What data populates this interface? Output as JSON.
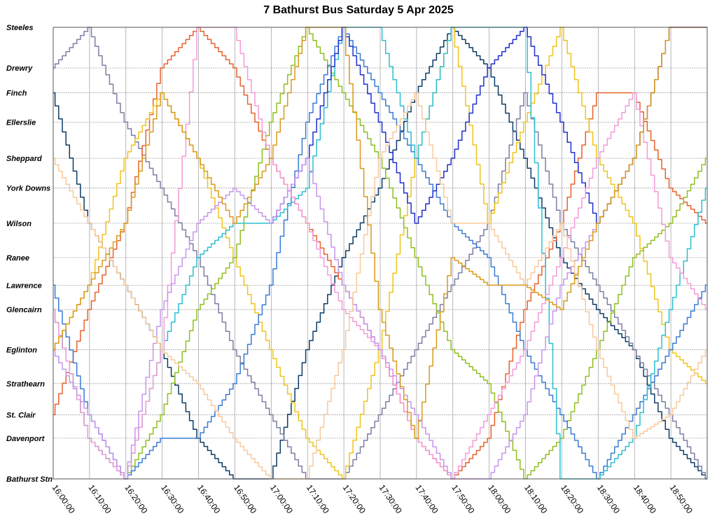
{
  "title": "7 Bathurst Bus Saturday 5 Apr 2025",
  "chart_data": {
    "type": "line",
    "title": "7 Bathurst Bus Saturday 5 Apr 2025",
    "xlabel": "",
    "ylabel": "",
    "x_ticks": [
      "16:00:00",
      "16:10:00",
      "16:20:00",
      "16:30:00",
      "16:40:00",
      "16:50:00",
      "17:00:00",
      "17:10:00",
      "17:20:00",
      "17:30:00",
      "17:40:00",
      "17:50:00",
      "18:00:00",
      "18:10:00",
      "18:20:00",
      "18:30:00",
      "18:40:00",
      "18:50:00"
    ],
    "xlim": [
      "16:00:00",
      "19:00:00"
    ],
    "y_stops": [
      "Steeles",
      "Drewry",
      "Finch",
      "Ellerslie",
      "Sheppard",
      "York Downs",
      "Wilson",
      "Ranee",
      "Lawrence",
      "Glencairn",
      "Eglinton",
      "Strathearn",
      "St. Clair",
      "Davenport",
      "Bathurst Stn"
    ],
    "grid": true,
    "series": [
      {
        "color": "#0d3b66",
        "values": [
          [
            "16:00:00",
            "Finch"
          ],
          [
            "16:10:00",
            "Wilson"
          ],
          [
            "16:20:00",
            "Lawrence"
          ],
          [
            "16:30:00",
            "Eglinton"
          ],
          [
            "16:40:00",
            "Davenport"
          ],
          [
            "16:50:00",
            "Bathurst Stn"
          ],
          [
            "17:00:00",
            "Bathurst Stn"
          ],
          [
            "17:10:00",
            "Eglinton"
          ],
          [
            "17:20:00",
            "Ranee"
          ],
          [
            "17:30:00",
            "York Downs"
          ],
          [
            "17:40:00",
            "Finch"
          ],
          [
            "17:50:00",
            "Steeles"
          ],
          [
            "18:00:00",
            "Drewry"
          ],
          [
            "18:10:00",
            "Sheppard"
          ],
          [
            "18:20:00",
            "Ranee"
          ],
          [
            "18:30:00",
            "Glencairn"
          ],
          [
            "18:40:00",
            "Eglinton"
          ],
          [
            "18:50:00",
            "Davenport"
          ],
          [
            "19:00:00",
            "Bathurst Stn"
          ]
        ]
      },
      {
        "color": "#7b7fa3",
        "values": [
          [
            "16:00:00",
            "Drewry"
          ],
          [
            "16:10:00",
            "Steeles"
          ],
          [
            "16:20:00",
            "Ellerslie"
          ],
          [
            "16:30:00",
            "York Downs"
          ],
          [
            "16:40:00",
            "Ranee"
          ],
          [
            "16:50:00",
            "Eglinton"
          ],
          [
            "17:00:00",
            "St. Clair"
          ],
          [
            "17:10:00",
            "Bathurst Stn"
          ],
          [
            "17:20:00",
            "Bathurst Stn"
          ],
          [
            "17:30:00",
            "St. Clair"
          ],
          [
            "17:40:00",
            "Eglinton"
          ],
          [
            "17:50:00",
            "Lawrence"
          ],
          [
            "18:00:00",
            "Wilson"
          ],
          [
            "18:10:00",
            "Finch"
          ],
          [
            "18:20:00",
            "Wilson"
          ],
          [
            "18:30:00",
            "Lawrence"
          ],
          [
            "18:40:00",
            "Eglinton"
          ],
          [
            "18:50:00",
            "St. Clair"
          ],
          [
            "19:00:00",
            "Bathurst Stn"
          ]
        ]
      },
      {
        "color": "#e8612c",
        "values": [
          [
            "16:00:00",
            "St. Clair"
          ],
          [
            "16:10:00",
            "Glencairn"
          ],
          [
            "16:20:00",
            "Wilson"
          ],
          [
            "16:30:00",
            "Drewry"
          ],
          [
            "16:40:00",
            "Steeles"
          ],
          [
            "16:50:00",
            "Drewry"
          ],
          [
            "17:00:00",
            "Sheppard"
          ],
          [
            "17:10:00",
            "Wilson"
          ],
          [
            "17:20:00",
            "Lawrence"
          ],
          [
            "17:30:00",
            "Eglinton"
          ],
          [
            "17:40:00",
            "Davenport"
          ],
          [
            "17:50:00",
            "Bathurst Stn"
          ],
          [
            "18:00:00",
            "Davenport"
          ],
          [
            "18:10:00",
            "Glencairn"
          ],
          [
            "18:20:00",
            "Wilson"
          ],
          [
            "18:30:00",
            "Finch"
          ],
          [
            "18:40:00",
            "Finch"
          ],
          [
            "18:50:00",
            "York Downs"
          ],
          [
            "19:00:00",
            "Wilson"
          ]
        ]
      },
      {
        "color": "#f0c419",
        "values": [
          [
            "16:00:00",
            "Eglinton"
          ],
          [
            "16:10:00",
            "Lawrence"
          ],
          [
            "16:20:00",
            "Sheppard"
          ],
          [
            "16:30:00",
            "Finch"
          ],
          [
            "16:40:00",
            "Sheppard"
          ],
          [
            "16:50:00",
            "Ranee"
          ],
          [
            "17:00:00",
            "Eglinton"
          ],
          [
            "17:10:00",
            "Davenport"
          ],
          [
            "17:20:00",
            "Bathurst Stn"
          ],
          [
            "17:30:00",
            "Eglinton"
          ],
          [
            "17:40:00",
            "Sheppard"
          ],
          [
            "17:50:00",
            "Steeles"
          ],
          [
            "18:00:00",
            "Wilson"
          ],
          [
            "18:10:00",
            "Ellerslie"
          ],
          [
            "18:20:00",
            "Steeles"
          ],
          [
            "18:30:00",
            "Sheppard"
          ],
          [
            "18:40:00",
            "Wilson"
          ],
          [
            "18:50:00",
            "Eglinton"
          ],
          [
            "19:00:00",
            "Strathearn"
          ]
        ]
      },
      {
        "color": "#8fbf1f",
        "values": [
          [
            "16:00:00",
            "Glencairn"
          ],
          [
            "16:10:00",
            "Davenport"
          ],
          [
            "16:20:00",
            "Bathurst Stn"
          ],
          [
            "16:30:00",
            "St. Clair"
          ],
          [
            "16:40:00",
            "Glencairn"
          ],
          [
            "16:50:00",
            "Ranee"
          ],
          [
            "17:00:00",
            "Ellerslie"
          ],
          [
            "17:10:00",
            "Steeles"
          ],
          [
            "17:20:00",
            "Finch"
          ],
          [
            "17:30:00",
            "Sheppard"
          ],
          [
            "17:40:00",
            "Ranee"
          ],
          [
            "17:50:00",
            "Eglinton"
          ],
          [
            "18:00:00",
            "Strathearn"
          ],
          [
            "18:10:00",
            "Bathurst Stn"
          ],
          [
            "18:20:00",
            "Davenport"
          ],
          [
            "18:30:00",
            "Eglinton"
          ],
          [
            "18:40:00",
            "Ranee"
          ],
          [
            "18:50:00",
            "Wilson"
          ],
          [
            "19:00:00",
            "Sheppard"
          ]
        ]
      },
      {
        "color": "#3a7bd5",
        "values": [
          [
            "16:00:00",
            "Lawrence"
          ],
          [
            "16:10:00",
            "St. Clair"
          ],
          [
            "16:20:00",
            "Bathurst Stn"
          ],
          [
            "16:30:00",
            "Davenport"
          ],
          [
            "16:40:00",
            "Davenport"
          ],
          [
            "16:50:00",
            "Strathearn"
          ],
          [
            "17:00:00",
            "Lawrence"
          ],
          [
            "17:10:00",
            "Ellerslie"
          ],
          [
            "17:20:00",
            "Steeles"
          ],
          [
            "17:30:00",
            "Finch"
          ],
          [
            "17:40:00",
            "Sheppard"
          ],
          [
            "17:50:00",
            "Wilson"
          ],
          [
            "18:00:00",
            "Ranee"
          ],
          [
            "18:10:00",
            "Eglinton"
          ],
          [
            "18:20:00",
            "St. Clair"
          ],
          [
            "18:30:00",
            "Bathurst Stn"
          ],
          [
            "18:40:00",
            "St. Clair"
          ],
          [
            "18:50:00",
            "Eglinton"
          ],
          [
            "19:00:00",
            "Lawrence"
          ]
        ]
      },
      {
        "color": "#2bbfd1",
        "values": [
          [
            "16:00:00",
            "Glencairn"
          ],
          [
            "16:10:00",
            "Davenport"
          ],
          [
            "16:20:00",
            "Bathurst Stn"
          ],
          [
            "16:30:00",
            "Eglinton"
          ],
          [
            "16:40:00",
            "Ranee"
          ],
          [
            "16:50:00",
            "Wilson"
          ],
          [
            "17:00:00",
            "Wilson"
          ],
          [
            "17:10:00",
            "York Downs"
          ],
          [
            "17:20:00",
            "Steeles"
          ],
          [
            "17:30:00",
            "Steeles"
          ],
          [
            "17:40:00",
            "Sheppard"
          ],
          [
            "17:50:00",
            "Steeles"
          ],
          [
            "18:00:00",
            "Steeles"
          ],
          [
            "18:10:00",
            "Steeles"
          ],
          [
            "18:20:00",
            "Bathurst Stn"
          ],
          [
            "18:30:00",
            "Bathurst Stn"
          ],
          [
            "18:40:00",
            "Davenport"
          ],
          [
            "18:50:00",
            "Glencairn"
          ],
          [
            "19:00:00",
            "York Downs"
          ]
        ]
      },
      {
        "color": "#1f2fd1",
        "values": [
          [
            "17:00:00",
            "Wilson"
          ],
          [
            "17:10:00",
            "Sheppard"
          ],
          [
            "17:20:00",
            "Steeles"
          ],
          [
            "17:30:00",
            "Ellerslie"
          ],
          [
            "17:40:00",
            "Wilson"
          ],
          [
            "17:50:00",
            "Sheppard"
          ],
          [
            "18:00:00",
            "Drewry"
          ],
          [
            "18:10:00",
            "Steeles"
          ],
          [
            "18:20:00",
            "Ellerslie"
          ],
          [
            "18:30:00",
            "Wilson"
          ],
          [
            "18:40:00",
            "Sheppard"
          ],
          [
            "18:50:00",
            "Steeles"
          ],
          [
            "19:00:00",
            "Steeles"
          ]
        ]
      },
      {
        "color": "#f39ad8",
        "values": [
          [
            "16:00:00",
            "Glencairn"
          ],
          [
            "16:10:00",
            "Davenport"
          ],
          [
            "16:20:00",
            "Bathurst Stn"
          ],
          [
            "16:30:00",
            "Eglinton"
          ],
          [
            "16:40:00",
            "Steeles"
          ],
          [
            "16:50:00",
            "Steeles"
          ],
          [
            "17:00:00",
            "Sheppard"
          ],
          [
            "17:10:00",
            "Wilson"
          ],
          [
            "17:20:00",
            "Glencairn"
          ],
          [
            "17:30:00",
            "Eglinton"
          ],
          [
            "17:40:00",
            "Davenport"
          ],
          [
            "17:50:00",
            "Bathurst Stn"
          ],
          [
            "18:00:00",
            "St. Clair"
          ],
          [
            "18:10:00",
            "Eglinton"
          ],
          [
            "18:20:00",
            "Ranee"
          ],
          [
            "18:30:00",
            "Sheppard"
          ],
          [
            "18:40:00",
            "Finch"
          ],
          [
            "18:50:00",
            "Ranee"
          ],
          [
            "19:00:00",
            "Glencairn"
          ]
        ]
      },
      {
        "color": "#c795ec",
        "values": [
          [
            "16:00:00",
            "Eglinton"
          ],
          [
            "16:10:00",
            "St. Clair"
          ],
          [
            "16:20:00",
            "Bathurst Stn"
          ],
          [
            "16:30:00",
            "Glencairn"
          ],
          [
            "16:40:00",
            "Wilson"
          ],
          [
            "16:50:00",
            "York Downs"
          ],
          [
            "17:00:00",
            "Wilson"
          ],
          [
            "17:10:00",
            "Sheppard"
          ],
          [
            "17:20:00",
            "Lawrence"
          ],
          [
            "17:30:00",
            "Eglinton"
          ],
          [
            "17:40:00",
            "St. Clair"
          ],
          [
            "17:50:00",
            "Bathurst Stn"
          ],
          [
            "18:00:00",
            "Bathurst Stn"
          ],
          [
            "18:10:00",
            "St. Clair"
          ],
          [
            "18:20:00",
            "Lawrence"
          ],
          [
            "18:30:00",
            "Wilson"
          ],
          [
            "18:40:00",
            "Sheppard"
          ],
          [
            "18:50:00",
            "Steeles"
          ],
          [
            "19:00:00",
            "Steeles"
          ]
        ]
      },
      {
        "color": "#f7c99b",
        "values": [
          [
            "16:00:00",
            "Sheppard"
          ],
          [
            "16:10:00",
            "Wilson"
          ],
          [
            "16:20:00",
            "Lawrence"
          ],
          [
            "16:30:00",
            "Eglinton"
          ],
          [
            "16:40:00",
            "Strathearn"
          ],
          [
            "16:50:00",
            "Davenport"
          ],
          [
            "17:00:00",
            "Bathurst Stn"
          ],
          [
            "17:10:00",
            "Bathurst Stn"
          ],
          [
            "17:20:00",
            "Eglinton"
          ],
          [
            "17:30:00",
            "Sheppard"
          ],
          [
            "17:40:00",
            "Finch"
          ],
          [
            "17:50:00",
            "Wilson"
          ],
          [
            "18:00:00",
            "Wilson"
          ],
          [
            "18:10:00",
            "Lawrence"
          ],
          [
            "18:20:00",
            "Wilson"
          ],
          [
            "18:30:00",
            "Eglinton"
          ],
          [
            "18:40:00",
            "Davenport"
          ],
          [
            "18:50:00",
            "St. Clair"
          ],
          [
            "19:00:00",
            "Eglinton"
          ]
        ]
      },
      {
        "color": "#d99a1a",
        "values": [
          [
            "16:00:00",
            "Eglinton"
          ],
          [
            "16:10:00",
            "Lawrence"
          ],
          [
            "16:20:00",
            "Wilson"
          ],
          [
            "16:30:00",
            "Finch"
          ],
          [
            "16:40:00",
            "Sheppard"
          ],
          [
            "16:50:00",
            "Wilson"
          ],
          [
            "17:00:00",
            "Sheppard"
          ],
          [
            "17:10:00",
            "Steeles"
          ],
          [
            "17:20:00",
            "Steeles"
          ],
          [
            "17:30:00",
            "Glencairn"
          ],
          [
            "17:40:00",
            "Davenport"
          ],
          [
            "17:50:00",
            "Ranee"
          ],
          [
            "18:00:00",
            "Lawrence"
          ],
          [
            "18:10:00",
            "Lawrence"
          ],
          [
            "18:20:00",
            "Glencairn"
          ],
          [
            "18:30:00",
            "Wilson"
          ],
          [
            "18:40:00",
            "Sheppard"
          ],
          [
            "18:50:00",
            "Steeles"
          ],
          [
            "19:00:00",
            "Steeles"
          ]
        ]
      }
    ]
  },
  "stop_fractions": [
    0,
    0.09,
    0.145,
    0.21,
    0.29,
    0.356,
    0.434,
    0.51,
    0.571,
    0.625,
    0.714,
    0.789,
    0.858,
    0.91,
    1.0
  ]
}
